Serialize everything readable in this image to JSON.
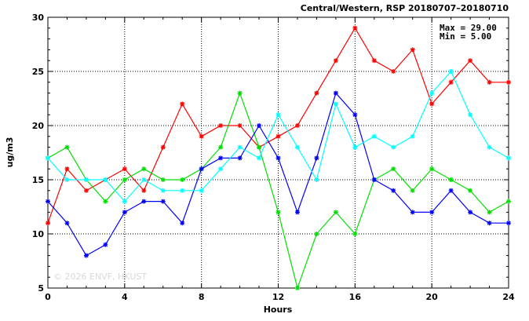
{
  "chart_data": {
    "type": "line",
    "title": "Central/Western, RSP 20180707–20180710",
    "xlabel": "Hours",
    "ylabel": "ug/m3",
    "xlim": [
      0,
      24
    ],
    "ylim": [
      5,
      30
    ],
    "xticks": [
      0,
      4,
      8,
      12,
      16,
      20,
      24
    ],
    "yticks": [
      5,
      10,
      15,
      20,
      25,
      30
    ],
    "grid": true,
    "stats": {
      "max_label": "Max = 29.00",
      "min_label": "Min =  5.00"
    },
    "watermark": "© 2026  ENVF, HKUST",
    "x": [
      0,
      1,
      2,
      3,
      4,
      5,
      6,
      7,
      8,
      9,
      10,
      11,
      12,
      13,
      14,
      15,
      16,
      17,
      18,
      19,
      20,
      21,
      22,
      23,
      24
    ],
    "series": [
      {
        "color": "#ff0000",
        "values": [
          11,
          16,
          14,
          15,
          16,
          14,
          18,
          22,
          19,
          20,
          20,
          18,
          19,
          20,
          23,
          26,
          29,
          26,
          25,
          27,
          22,
          24,
          26,
          24,
          24
        ]
      },
      {
        "color": "#00e000",
        "values": [
          17,
          18,
          15,
          13,
          15,
          16,
          15,
          15,
          16,
          18,
          23,
          18,
          12,
          5,
          10,
          12,
          10,
          15,
          16,
          14,
          16,
          15,
          14,
          12,
          13
        ]
      },
      {
        "color": "#0000ff",
        "values": [
          13,
          11,
          8,
          9,
          12,
          13,
          13,
          11,
          16,
          17,
          17,
          20,
          17,
          12,
          17,
          23,
          21,
          15,
          14,
          12,
          12,
          14,
          12,
          11,
          11
        ]
      },
      {
        "color": "#00ffff",
        "values": [
          17,
          15,
          15,
          15,
          13,
          15,
          14,
          14,
          14,
          16,
          18,
          17,
          21,
          18,
          15,
          22,
          18,
          19,
          18,
          19,
          23,
          25,
          21,
          18,
          17
        ]
      }
    ]
  }
}
